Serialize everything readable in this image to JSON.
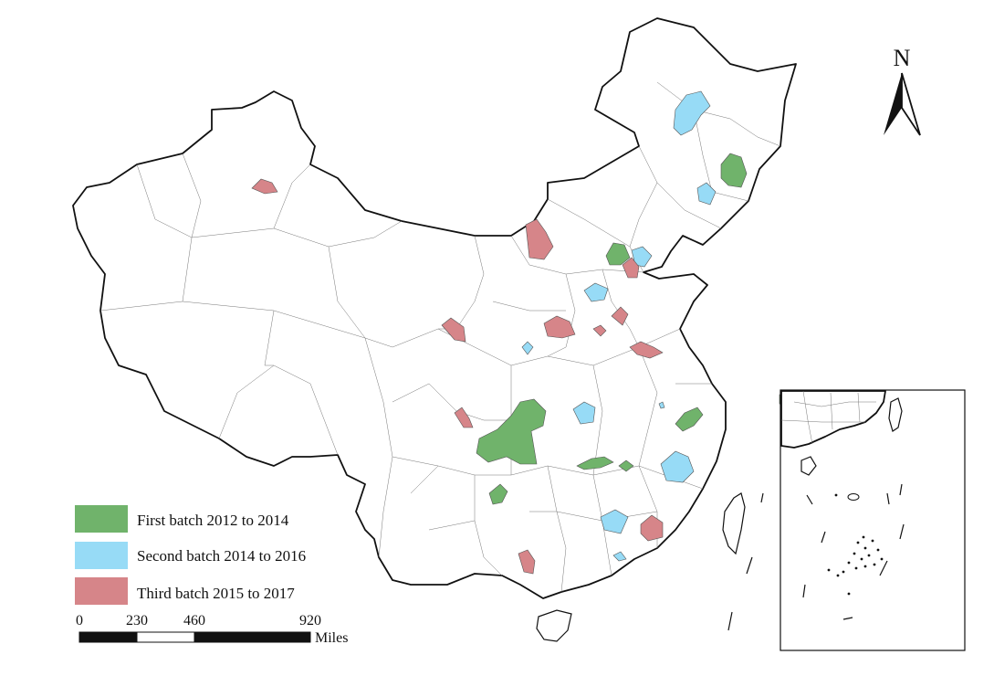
{
  "colors": {
    "first": "#70b36b",
    "second": "#97dbf6",
    "third": "#d68589"
  },
  "legend": [
    {
      "key": "first",
      "label": "First batch 2012 to 2014"
    },
    {
      "key": "second",
      "label": "Second batch 2014 to 2016"
    },
    {
      "key": "third",
      "label": "Third batch 2015 to 2017"
    }
  ],
  "scale_bar": {
    "ticks": [
      "0",
      "230",
      "460",
      "920"
    ],
    "unit": "Miles"
  },
  "north_arrow": {
    "label": "N"
  },
  "icons": [
    "north-arrow-icon"
  ]
}
